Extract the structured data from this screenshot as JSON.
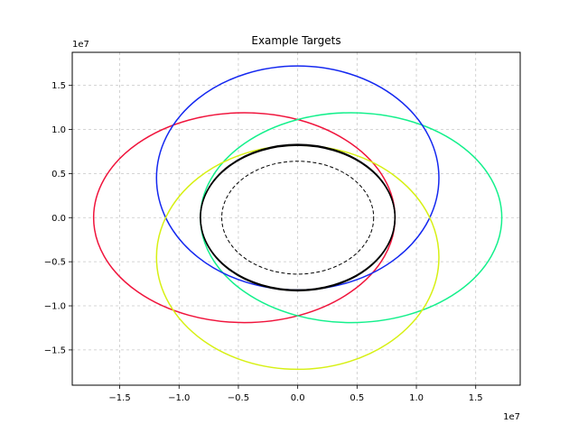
{
  "chart_data": {
    "type": "line",
    "title": "Example Targets",
    "xlabel": "",
    "ylabel": "",
    "x_offset_text": "1e7",
    "y_offset_text": "1e7",
    "xlim": [
      -1.9,
      1.875
    ],
    "ylim": [
      -1.9,
      1.875
    ],
    "units_scale": "1e7",
    "grid": true,
    "x_ticks": [
      -1.5,
      -1.0,
      -0.5,
      0.0,
      0.5,
      1.0,
      1.5
    ],
    "x_tick_labels": [
      "−1.5",
      "−1.0",
      "−0.5",
      "0.0",
      "0.5",
      "1.0",
      "1.5"
    ],
    "y_ticks": [
      -1.5,
      -1.0,
      -0.5,
      0.0,
      0.5,
      1.0,
      1.5
    ],
    "y_tick_labels": [
      "−1.5",
      "−1.0",
      "−0.5",
      "0.0",
      "0.5",
      "1.0",
      "1.5"
    ],
    "series": [
      {
        "shape": "ellipse",
        "cx": -0.45,
        "cy": 0.0,
        "rx": 1.27,
        "ry": 1.19,
        "color": "#f0143c",
        "style": "solid"
      },
      {
        "shape": "ellipse",
        "cx": 0.45,
        "cy": 0.0,
        "rx": 1.27,
        "ry": 1.19,
        "color": "#14f08c",
        "style": "solid"
      },
      {
        "shape": "ellipse",
        "cx": 0.0,
        "cy": 0.45,
        "rx": 1.19,
        "ry": 1.27,
        "color": "#1428f0",
        "style": "solid"
      },
      {
        "shape": "ellipse",
        "cx": 0.0,
        "cy": -0.45,
        "rx": 1.19,
        "ry": 1.27,
        "color": "#d7f014",
        "style": "solid"
      },
      {
        "shape": "ellipse",
        "cx": 0.0,
        "cy": 0.0,
        "rx": 0.82,
        "ry": 0.83,
        "color": "#000000",
        "style": "solid"
      },
      {
        "shape": "ellipse",
        "cx": 0.0,
        "cy": 0.0,
        "rx": 0.82,
        "ry": 0.82,
        "color": "#000000",
        "style": "solid"
      },
      {
        "shape": "ellipse",
        "cx": 0.0,
        "cy": 0.0,
        "rx": 0.64,
        "ry": 0.64,
        "color": "#000000",
        "style": "dashed"
      }
    ]
  }
}
